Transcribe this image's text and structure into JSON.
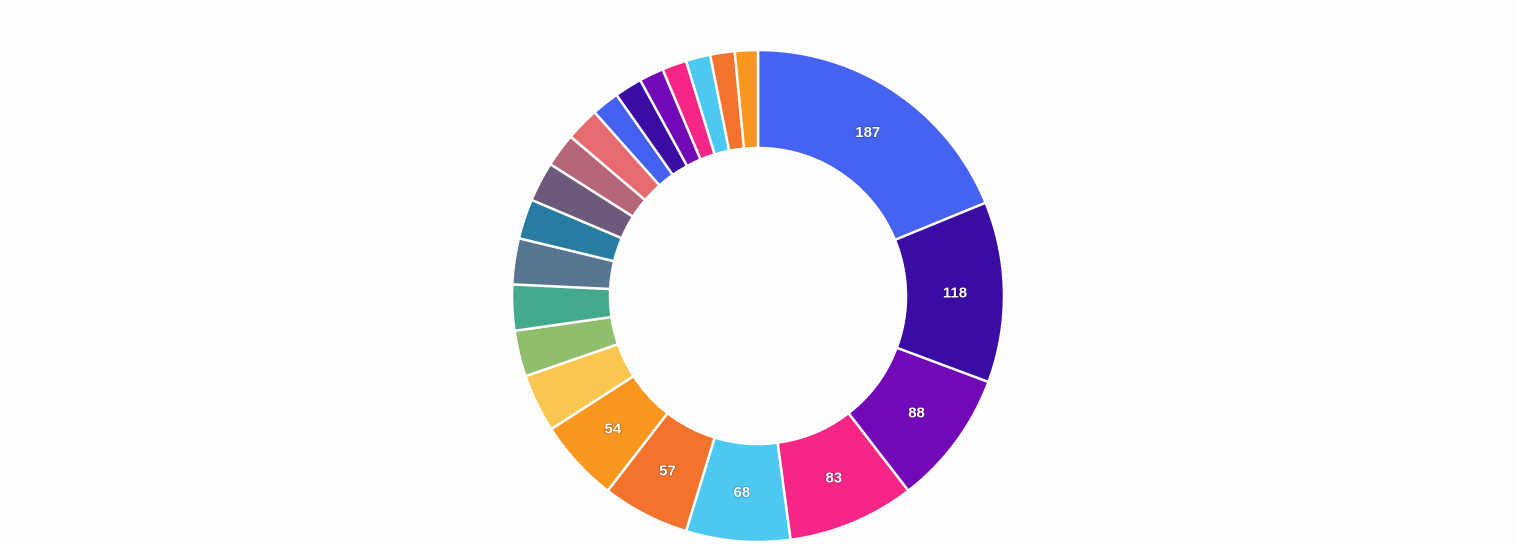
{
  "chart_data": {
    "type": "pie",
    "donut": true,
    "values": [
      187,
      118,
      88,
      83,
      68,
      57,
      54,
      38,
      30,
      30,
      30,
      26,
      26,
      22,
      22,
      18,
      18,
      16,
      16,
      16,
      16,
      15
    ],
    "data_labels": [
      "187",
      "118",
      "88",
      "83",
      "68",
      "57",
      "54",
      "",
      "",
      "",
      "",
      "",
      "",
      "",
      "",
      "",
      "",
      "",
      "",
      "",
      "",
      ""
    ],
    "colors": [
      "#4563f0",
      "#3a0ca3",
      "#7209b7",
      "#f72585",
      "#4cc9f0",
      "#f3722c",
      "#f8961e",
      "#f9c74f",
      "#90be6d",
      "#43aa8b",
      "#577590",
      "#277da1",
      "#6d597a",
      "#b56576",
      "#e56b6f",
      "#4361ee",
      "#3a0ca3",
      "#7209b7",
      "#f72585",
      "#4cc9f0",
      "#f3722c",
      "#f8961e"
    ],
    "start_angle_deg": 0,
    "direction": "clockwise",
    "title": "",
    "legend": "none"
  }
}
